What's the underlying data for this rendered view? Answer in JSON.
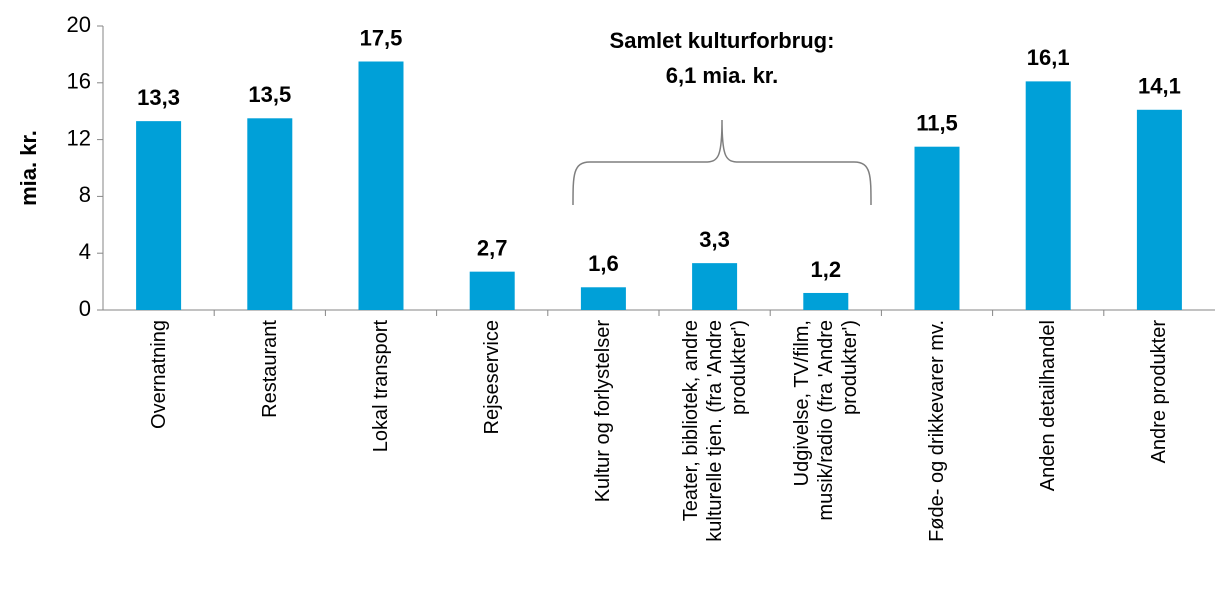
{
  "chart_data": {
    "type": "bar",
    "ylabel": "mia. kr.",
    "annotation": [
      "Samlet kulturforbrug:",
      "6,1 mia. kr."
    ],
    "categories": [
      "Overnatning",
      "Restaurant",
      "Lokal transport",
      "Rejseservice",
      "Kultur og forlystelser",
      "Teater, bibliotek, andre kulturelle tjen. (fra 'Andre produkter')",
      "Udgivelse, TV/film, musik/radio (fra 'Andre produkter')",
      "Føde- og drikkevarer mv.",
      "Anden detailhandel",
      "Andre produkter"
    ],
    "values": [
      13.3,
      13.5,
      17.5,
      2.7,
      1.6,
      3.3,
      1.2,
      11.5,
      16.1,
      14.1
    ],
    "value_labels": [
      "13,3",
      "13,5",
      "17,5",
      "2,7",
      "1,6",
      "3,3",
      "1,2",
      "11,5",
      "16,1",
      "14,1"
    ],
    "color": "#00a0d8",
    "ylim": [
      0,
      20
    ],
    "yticks": [
      0,
      4,
      8,
      12,
      16,
      20
    ],
    "grid": false
  }
}
